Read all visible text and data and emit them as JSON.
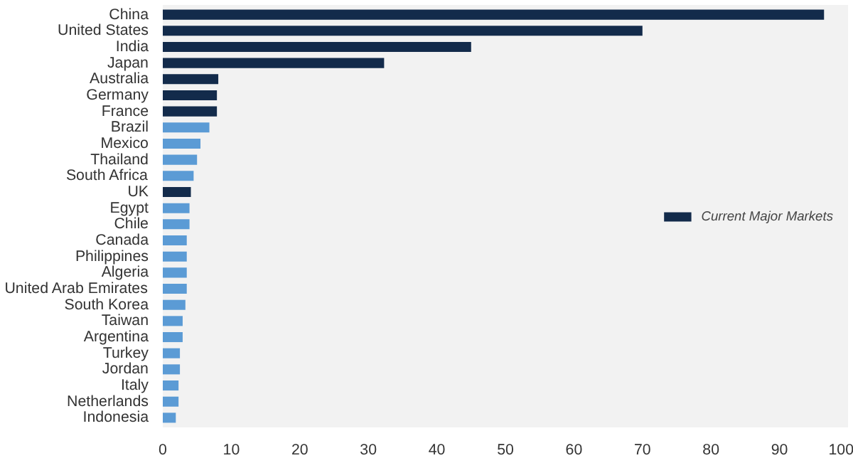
{
  "chart_data": {
    "type": "bar",
    "orientation": "horizontal",
    "categories": [
      "China",
      "United States",
      "India",
      "Japan",
      "Australia",
      "Germany",
      "France",
      "Brazil",
      "Mexico",
      "Thailand",
      "South Africa",
      "UK",
      "Egypt",
      "Chile",
      "Canada",
      "Philippines",
      "Algeria",
      "United Arab Emirates",
      "South Korea",
      "Taiwan",
      "Argentina",
      "Turkey",
      "Jordan",
      "Italy",
      "Netherlands",
      "Indonesia"
    ],
    "series": [
      {
        "name": "Current Major Markets",
        "color": "#132b4b",
        "values": [
          96.5,
          70,
          45,
          32.3,
          8.1,
          7.9,
          7.9,
          null,
          null,
          null,
          null,
          4.1,
          null,
          null,
          null,
          null,
          null,
          null,
          null,
          null,
          null,
          null,
          null,
          null,
          null,
          null
        ]
      },
      {
        "color": "#5b9bd5",
        "values": [
          null,
          null,
          null,
          null,
          null,
          null,
          null,
          6.8,
          5.5,
          5.0,
          4.5,
          null,
          3.9,
          3.9,
          3.5,
          3.5,
          3.5,
          3.5,
          3.3,
          2.9,
          2.9,
          2.5,
          2.5,
          2.3,
          2.3,
          1.9
        ]
      }
    ],
    "xlim": [
      0,
      100
    ],
    "xticks": [
      0,
      10,
      20,
      30,
      40,
      50,
      60,
      70,
      80,
      90,
      100
    ],
    "grid": false,
    "legend": "right"
  }
}
